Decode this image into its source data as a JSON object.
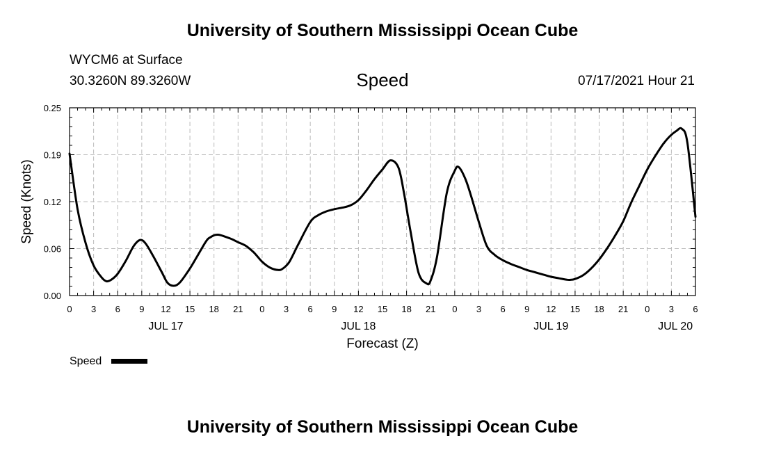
{
  "header": {
    "title": "University of Southern Mississippi Ocean Cube",
    "station": "WYCM6 at Surface",
    "coordinates": "30.3260N  89.3260W",
    "variable": "Speed",
    "timestamp": "07/17/2021 Hour 21"
  },
  "footer": {
    "title": "University of Southern Mississippi Ocean Cube"
  },
  "colors": {
    "line": "#000000",
    "grid": "#bbbbbb"
  },
  "chart_data": {
    "type": "line",
    "title": "Speed",
    "xlabel": "Forecast (Z)",
    "ylabel": "Speed (Knots)",
    "ylim": [
      0,
      0.25
    ],
    "xlim": [
      0,
      78
    ],
    "grid": true,
    "legend_position": "bottom-left",
    "y_ticks": [
      0,
      0.0625,
      0.125,
      0.1875,
      0.25
    ],
    "y_tick_labels": [
      "0.00",
      "0.06",
      "0.12",
      "0.19",
      "0.25"
    ],
    "x_ticks": [
      0,
      3,
      6,
      9,
      12,
      15,
      18,
      21,
      24,
      27,
      30,
      33,
      36,
      39,
      42,
      45,
      48,
      51,
      54,
      57,
      60,
      63,
      66,
      69,
      72,
      75,
      78
    ],
    "x_tick_labels": [
      "0",
      "3",
      "6",
      "9",
      "12",
      "15",
      "18",
      "21",
      "0",
      "3",
      "6",
      "9",
      "12",
      "15",
      "18",
      "21",
      "0",
      "3",
      "6",
      "9",
      "12",
      "15",
      "18",
      "21",
      "0",
      "3",
      "6"
    ],
    "date_labels": [
      {
        "label": "JUL 17",
        "x": 12
      },
      {
        "label": "JUL 18",
        "x": 36
      },
      {
        "label": "JUL 19",
        "x": 60
      },
      {
        "label": "JUL 20",
        "x": 75.5
      }
    ],
    "series": [
      {
        "name": "Speed",
        "x": [
          0,
          1,
          2,
          3,
          4,
          4.6,
          5.2,
          6,
          7,
          8,
          8.8,
          9.5,
          10.5,
          11.5,
          12.2,
          13,
          13.8,
          15,
          16,
          17,
          17.6,
          18.5,
          20,
          21,
          22,
          23,
          24,
          25,
          26,
          26.6,
          27.4,
          28.5,
          30,
          31,
          32,
          33,
          34,
          35,
          36,
          37,
          38,
          39,
          40,
          41,
          41.7,
          42.5,
          43.5,
          44.5,
          45,
          45.8,
          47,
          48,
          48.5,
          49.3,
          50,
          51,
          52,
          53,
          54,
          55,
          56,
          57,
          58,
          59,
          60,
          61,
          62,
          62.5,
          63,
          64,
          65,
          66,
          67,
          68,
          69,
          70,
          71,
          72,
          73,
          74,
          74.8,
          75.6,
          76.3,
          77,
          78
        ],
        "values": [
          0.189,
          0.115,
          0.07,
          0.04,
          0.024,
          0.019,
          0.021,
          0.029,
          0.046,
          0.066,
          0.074,
          0.069,
          0.051,
          0.031,
          0.017,
          0.013,
          0.018,
          0.036,
          0.054,
          0.072,
          0.078,
          0.081,
          0.076,
          0.071,
          0.066,
          0.057,
          0.045,
          0.037,
          0.034,
          0.036,
          0.045,
          0.068,
          0.098,
          0.107,
          0.112,
          0.115,
          0.117,
          0.12,
          0.127,
          0.14,
          0.155,
          0.168,
          0.18,
          0.17,
          0.135,
          0.085,
          0.03,
          0.016,
          0.02,
          0.052,
          0.136,
          0.166,
          0.171,
          0.156,
          0.134,
          0.098,
          0.066,
          0.054,
          0.047,
          0.042,
          0.038,
          0.034,
          0.031,
          0.028,
          0.025,
          0.023,
          0.021,
          0.021,
          0.022,
          0.027,
          0.036,
          0.048,
          0.063,
          0.08,
          0.099,
          0.124,
          0.146,
          0.168,
          0.186,
          0.202,
          0.212,
          0.219,
          0.222,
          0.203,
          0.105
        ]
      }
    ]
  }
}
